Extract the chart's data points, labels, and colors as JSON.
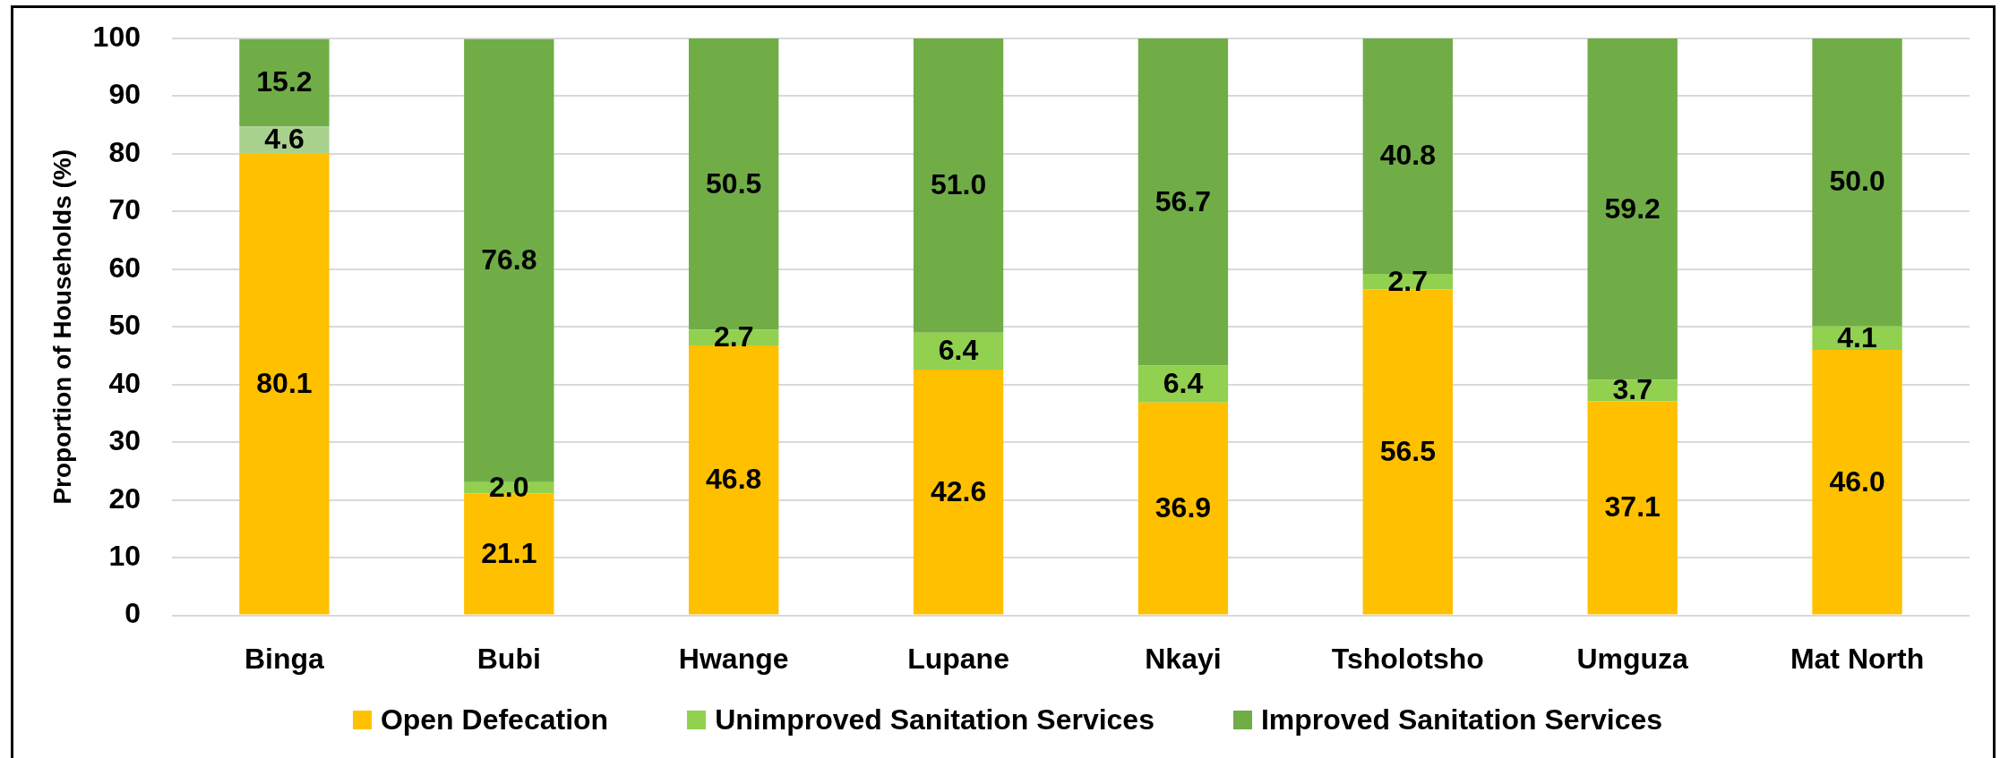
{
  "chart_data": {
    "type": "bar",
    "stacked": true,
    "ylabel": "Proportion of Households (%)",
    "categories": [
      "Binga",
      "Bubi",
      "Hwange",
      "Lupane",
      "Nkayi",
      "Tsholotsho",
      "Umguza",
      "Mat North"
    ],
    "series": [
      {
        "name": "Open Defecation",
        "color": "#ffc000",
        "values": [
          80.1,
          21.1,
          46.8,
          42.6,
          36.9,
          56.5,
          37.1,
          46.0
        ],
        "value_labels": [
          "80.1",
          "21.1",
          "46.8",
          "42.6",
          "36.9",
          "56.5",
          "37.1",
          "46.0"
        ]
      },
      {
        "name": "Unimproved Sanitation Services",
        "color": "#92d050",
        "colors": [
          "#a9d18e",
          "#92d050",
          "#92d050",
          "#92d050",
          "#92d050",
          "#92d050",
          "#92d050",
          "#92d050"
        ],
        "values": [
          4.6,
          2.0,
          2.7,
          6.4,
          6.4,
          2.7,
          3.7,
          4.1
        ],
        "value_labels": [
          "4.6",
          "2.0",
          "2.7",
          "6.4",
          "6.4",
          "2.7",
          "3.7",
          "4.1"
        ]
      },
      {
        "name": "Improved Sanitation Services",
        "color": "#70ad47",
        "values": [
          15.2,
          76.8,
          50.5,
          51.0,
          56.7,
          40.8,
          59.2,
          50.0
        ],
        "value_labels": [
          "15.2",
          "76.8",
          "50.5",
          "51.0",
          "56.7",
          "40.8",
          "59.2",
          "50.0"
        ]
      }
    ],
    "ylim": [
      0,
      100
    ],
    "yticks": [
      0,
      10,
      20,
      30,
      40,
      50,
      60,
      70,
      80,
      90,
      100
    ],
    "grid": "y",
    "legend": "bottom"
  }
}
